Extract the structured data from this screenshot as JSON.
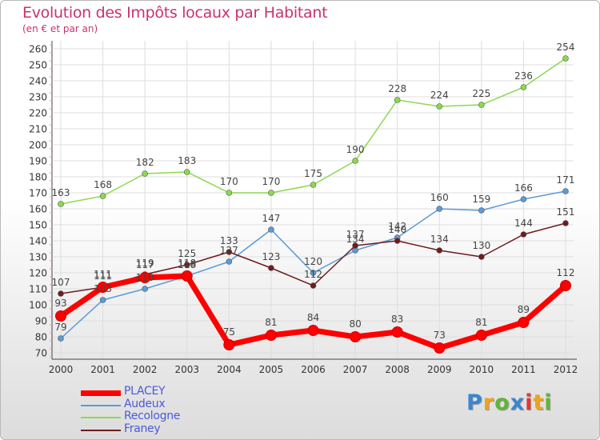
{
  "chart_data": {
    "type": "line",
    "title": "Evolution des Impôts locaux par Habitant",
    "subtitle": "(en € et par an)",
    "xlabel": "",
    "ylabel": "",
    "x": [
      "2000",
      "2001",
      "2002",
      "2003",
      "2004",
      "2005",
      "2006",
      "2007",
      "2008",
      "2009",
      "2010",
      "2011",
      "2012"
    ],
    "ylim": [
      70,
      260
    ],
    "y_ticks": [
      70,
      80,
      90,
      100,
      110,
      120,
      130,
      140,
      150,
      160,
      170,
      180,
      190,
      200,
      210,
      220,
      230,
      240,
      250,
      260
    ],
    "grid": true,
    "legend_position": "bottom-left",
    "series": [
      {
        "name": "Recologne",
        "color": "#8cd94f",
        "values": [
          163,
          168,
          182,
          183,
          170,
          170,
          175,
          190,
          228,
          224,
          225,
          236,
          254
        ]
      },
      {
        "name": "Audeux",
        "color": "#5b9bd5",
        "values": [
          79,
          103,
          110,
          118,
          127,
          147,
          120,
          134,
          142,
          160,
          159,
          166,
          171
        ]
      },
      {
        "name": "Franey",
        "color": "#6e1c20",
        "values": [
          107,
          111,
          119,
          125,
          133,
          123,
          112,
          137,
          140,
          134,
          130,
          144,
          151
        ]
      },
      {
        "name": "PLACEY",
        "color": "#ff0000",
        "values": [
          93,
          111,
          117,
          118,
          75,
          81,
          84,
          80,
          83,
          73,
          81,
          89,
          112
        ]
      }
    ],
    "legend_order": [
      "PLACEY",
      "Audeux",
      "Recologne",
      "Franey"
    ]
  },
  "logo": {
    "letters": [
      "P",
      "r",
      "o",
      "x",
      "i",
      "t",
      "i"
    ],
    "colors": [
      "#3a86d0",
      "#f1a21c",
      "#62b43a",
      "#3a86d0",
      "#e03a2e",
      "#f1a21c",
      "#62b43a"
    ]
  }
}
